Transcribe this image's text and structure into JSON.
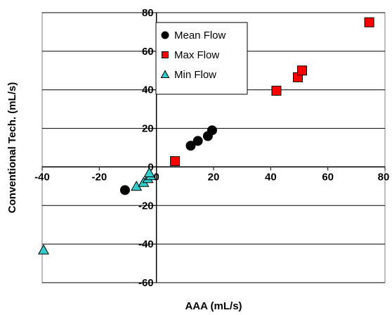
{
  "chart_data": {
    "type": "scatter",
    "xlabel": "AAA (mL/s)",
    "ylabel": "Conventional Tech. (mL/s)",
    "xlim": [
      -40,
      80
    ],
    "ylim": [
      -60,
      80
    ],
    "x_ticks": [
      "-40",
      "-20",
      "0",
      "20",
      "40",
      "60",
      "80"
    ],
    "y_ticks": [
      "-60",
      "-40",
      "-20",
      "0",
      "20",
      "40",
      "60",
      "80"
    ],
    "grid": "horizontal",
    "legend_position": "top-center",
    "series": [
      {
        "name": "Mean Flow",
        "marker": "circle",
        "color": "#000000",
        "points": [
          [
            -11,
            -12
          ],
          [
            12,
            11
          ],
          [
            14.5,
            13.5
          ],
          [
            18,
            16
          ],
          [
            19.5,
            19
          ]
        ]
      },
      {
        "name": "Max Flow",
        "marker": "square",
        "color": "#ff0000",
        "points": [
          [
            6.5,
            3
          ],
          [
            42,
            39.5
          ],
          [
            49.5,
            46.5
          ],
          [
            51,
            50
          ],
          [
            74.5,
            75
          ]
        ]
      },
      {
        "name": "Min Flow",
        "marker": "triangle",
        "color": "#33cccc",
        "points": [
          [
            -39.5,
            -43
          ],
          [
            -7,
            -10
          ],
          [
            -4.5,
            -8
          ],
          [
            -3,
            -6
          ],
          [
            -2,
            -4.5
          ],
          [
            -2.5,
            -3
          ]
        ]
      }
    ]
  }
}
